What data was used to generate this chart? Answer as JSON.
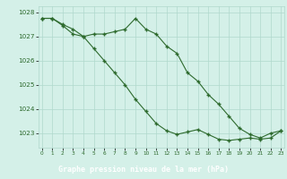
{
  "line1_x": [
    0,
    1,
    2,
    3,
    4,
    5,
    6,
    7,
    8,
    9,
    10,
    11,
    12,
    13,
    14,
    15,
    16,
    17,
    18,
    19,
    20,
    21,
    22,
    23
  ],
  "line1_y": [
    1027.75,
    1027.75,
    1027.5,
    1027.3,
    1027.0,
    1027.1,
    1027.1,
    1027.2,
    1027.3,
    1027.75,
    1027.3,
    1027.1,
    1026.6,
    1026.3,
    1025.5,
    1025.15,
    1024.6,
    1024.2,
    1023.7,
    1023.2,
    1022.95,
    1022.8,
    1023.0,
    1023.1
  ],
  "line2_x": [
    0,
    1,
    2,
    3,
    4,
    5,
    6,
    7,
    8,
    9,
    10,
    11,
    12,
    13,
    14,
    15,
    16,
    17,
    18,
    19,
    20,
    21,
    22,
    23
  ],
  "line2_y": [
    1027.75,
    1027.75,
    1027.45,
    1027.1,
    1027.0,
    1026.5,
    1026.0,
    1025.5,
    1025.0,
    1024.4,
    1023.9,
    1023.4,
    1023.1,
    1022.95,
    1023.05,
    1023.15,
    1022.95,
    1022.75,
    1022.7,
    1022.75,
    1022.8,
    1022.75,
    1022.8,
    1023.1
  ],
  "line_color": "#2d6a2d",
  "bg_color": "#d4f0e8",
  "grid_color": "#b0d8cc",
  "xlabel": "Graphe pression niveau de la mer (hPa)",
  "xlabel_bg": "#2d6a2d",
  "xlabel_fg": "#ffffff",
  "ylim": [
    1022.4,
    1028.25
  ],
  "xlim": [
    -0.3,
    23.3
  ],
  "yticks": [
    1023,
    1024,
    1025,
    1026,
    1027,
    1028
  ],
  "xticks": [
    0,
    1,
    2,
    3,
    4,
    5,
    6,
    7,
    8,
    9,
    10,
    11,
    12,
    13,
    14,
    15,
    16,
    17,
    18,
    19,
    20,
    21,
    22,
    23
  ]
}
